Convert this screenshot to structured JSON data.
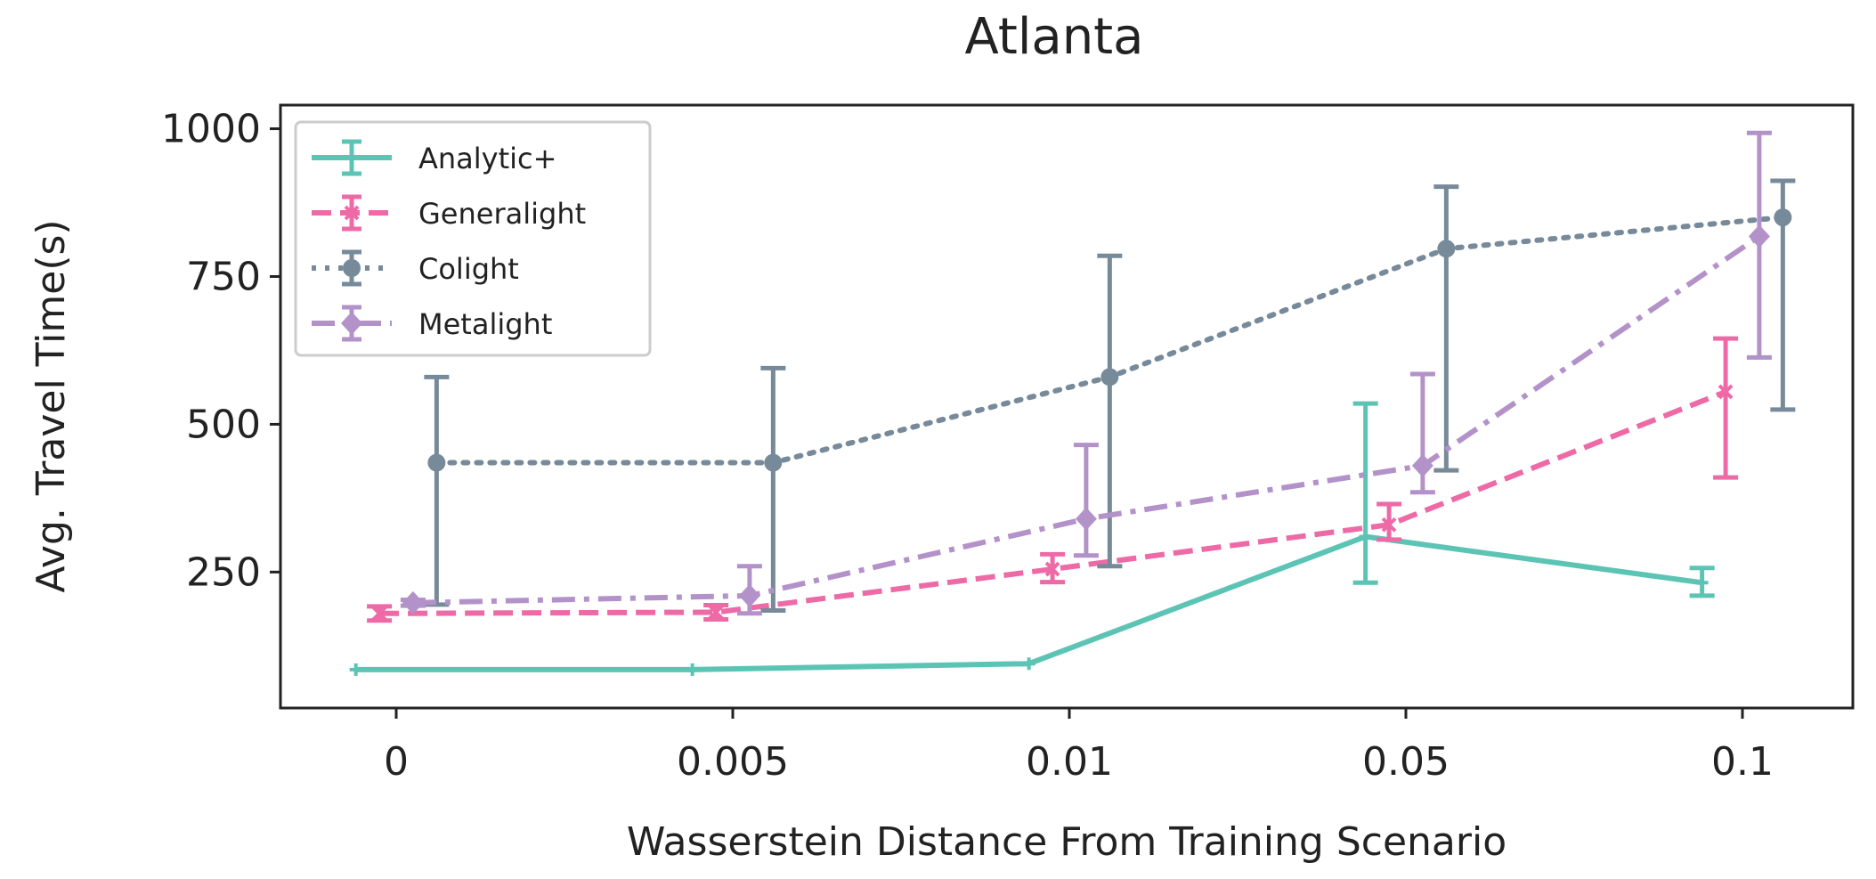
{
  "chart_data": {
    "type": "line",
    "title": "Atlanta",
    "xlabel": "Wasserstein Distance From Training Scenario",
    "ylabel": "Avg. Travel Time(s)",
    "categories": [
      "0",
      "0.005",
      "0.01",
      "0.05",
      "0.1"
    ],
    "yticks": [
      "250",
      "500",
      "750",
      "1000"
    ],
    "ylim": [
      20,
      1040
    ],
    "legend_position": "upper-left",
    "series": [
      {
        "name": "Analytic+",
        "color": "#5cc4b4",
        "linestyle": "solid",
        "marker": "plus",
        "offset": -0.12,
        "values": [
          85,
          85,
          95,
          310,
          232
        ],
        "err_low": [
          0,
          0,
          0,
          78,
          22
        ],
        "err_high": [
          0,
          0,
          0,
          225,
          25
        ]
      },
      {
        "name": "Generalight",
        "color": "#ee6aa6",
        "linestyle": "dashed",
        "marker": "x",
        "offset": -0.05,
        "values": [
          180,
          182,
          255,
          330,
          555
        ],
        "err_low": [
          12,
          12,
          22,
          25,
          145
        ],
        "err_high": [
          12,
          12,
          25,
          35,
          90
        ]
      },
      {
        "name": "Colight",
        "color": "#778a9a",
        "linestyle": "dotted",
        "marker": "circle",
        "offset": 0.12,
        "values": [
          435,
          435,
          580,
          797,
          850
        ],
        "err_low": [
          240,
          250,
          320,
          375,
          325
        ],
        "err_high": [
          145,
          160,
          205,
          105,
          62
        ]
      },
      {
        "name": "Metalight",
        "color": "#b392c9",
        "linestyle": "dashdot",
        "marker": "diamond",
        "offset": 0.05,
        "values": [
          198,
          210,
          340,
          430,
          818
        ],
        "err_low": [
          5,
          30,
          62,
          45,
          205
        ],
        "err_high": [
          5,
          50,
          125,
          155,
          175
        ]
      }
    ]
  }
}
